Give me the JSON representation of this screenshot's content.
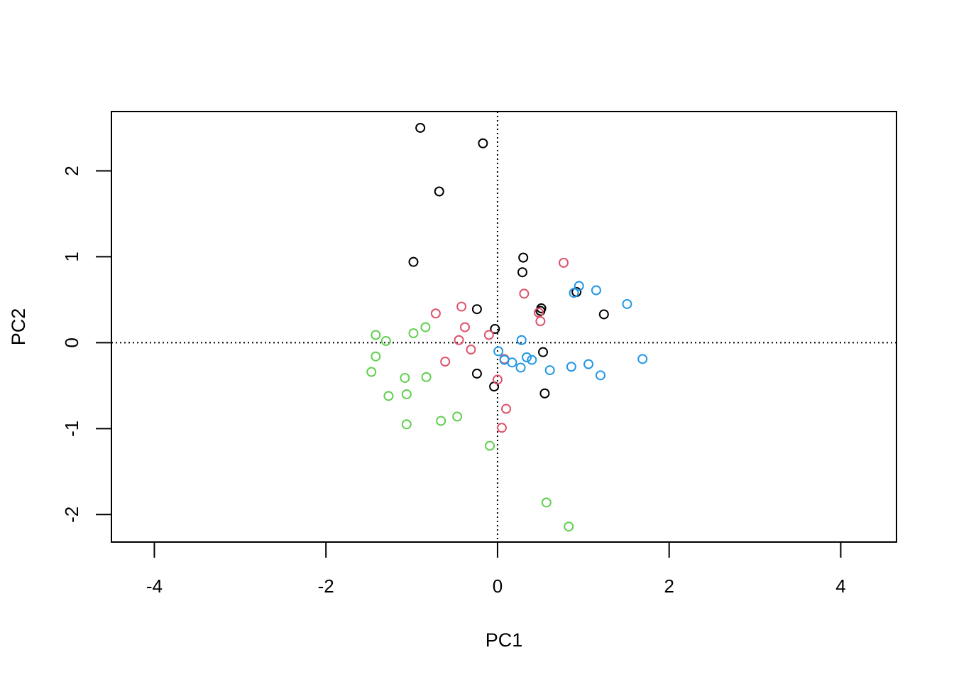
{
  "chart_data": {
    "type": "scatter",
    "title": "",
    "xlabel": "PC1",
    "ylabel": "PC2",
    "xlim": [
      -4.5,
      4.65
    ],
    "ylim": [
      -2.32,
      2.69
    ],
    "x_ticks": [
      -4,
      -2,
      0,
      2,
      4
    ],
    "y_ticks": [
      -2,
      -1,
      0,
      1,
      2
    ],
    "x_tick_labels": [
      "-4",
      "-2",
      "0",
      "2",
      "4"
    ],
    "y_tick_labels": [
      "-2",
      "-1",
      "0",
      "1",
      "2"
    ],
    "grid": false,
    "reference_lines": {
      "x": 0,
      "y": 0,
      "style": "dotted"
    },
    "legend": "none",
    "marker": "open-circle",
    "series": [
      {
        "color": "#000000",
        "points": [
          [
            -0.9,
            2.5
          ],
          [
            -0.17,
            2.32
          ],
          [
            -0.68,
            1.76
          ],
          [
            -0.98,
            0.94
          ],
          [
            0.3,
            0.99
          ],
          [
            0.29,
            0.82
          ],
          [
            0.51,
            0.4
          ],
          [
            0.5,
            0.37
          ],
          [
            0.92,
            0.59
          ],
          [
            1.24,
            0.33
          ],
          [
            -0.24,
            0.39
          ],
          [
            -0.03,
            0.16
          ],
          [
            0.53,
            -0.11
          ],
          [
            -0.24,
            -0.36
          ],
          [
            -0.04,
            -0.51
          ],
          [
            0.55,
            -0.59
          ]
        ]
      },
      {
        "color": "#DF536B",
        "points": [
          [
            0.77,
            0.93
          ],
          [
            0.31,
            0.57
          ],
          [
            -0.72,
            0.34
          ],
          [
            -0.42,
            0.42
          ],
          [
            0.48,
            0.35
          ],
          [
            0.5,
            0.25
          ],
          [
            -0.38,
            0.18
          ],
          [
            -0.1,
            0.09
          ],
          [
            -0.45,
            0.03
          ],
          [
            -0.31,
            -0.08
          ],
          [
            -0.61,
            -0.22
          ],
          [
            0.08,
            -0.19
          ],
          [
            0.0,
            -0.43
          ],
          [
            0.1,
            -0.77
          ],
          [
            0.05,
            -0.99
          ]
        ]
      },
      {
        "color": "#2297E6",
        "points": [
          [
            0.95,
            0.66
          ],
          [
            0.89,
            0.58
          ],
          [
            1.15,
            0.61
          ],
          [
            1.51,
            0.45
          ],
          [
            1.69,
            -0.19
          ],
          [
            0.28,
            0.03
          ],
          [
            0.01,
            -0.1
          ],
          [
            0.34,
            -0.17
          ],
          [
            0.08,
            -0.2
          ],
          [
            0.4,
            -0.2
          ],
          [
            0.17,
            -0.23
          ],
          [
            0.27,
            -0.29
          ],
          [
            0.61,
            -0.32
          ],
          [
            0.86,
            -0.28
          ],
          [
            1.06,
            -0.25
          ],
          [
            1.2,
            -0.38
          ]
        ]
      },
      {
        "color": "#61D04F",
        "points": [
          [
            -1.42,
            0.09
          ],
          [
            -1.3,
            0.02
          ],
          [
            -0.98,
            0.11
          ],
          [
            -0.84,
            0.18
          ],
          [
            -1.42,
            -0.16
          ],
          [
            -1.47,
            -0.34
          ],
          [
            -1.08,
            -0.41
          ],
          [
            -0.83,
            -0.4
          ],
          [
            -1.27,
            -0.62
          ],
          [
            -1.06,
            -0.6
          ],
          [
            -0.66,
            -0.91
          ],
          [
            -0.47,
            -0.86
          ],
          [
            -1.06,
            -0.95
          ],
          [
            -0.09,
            -1.2
          ],
          [
            0.57,
            -1.86
          ],
          [
            0.83,
            -2.14
          ]
        ]
      }
    ]
  }
}
